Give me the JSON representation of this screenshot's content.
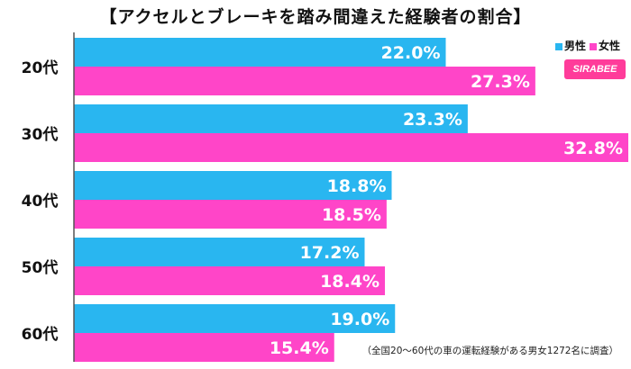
{
  "title": "【アクセルとブレーキを踏み間違えた経験者の割合】",
  "legend": {
    "male": "男性",
    "female": "女性"
  },
  "logo_text": "SIRABEE",
  "note": "（全国20〜60代の車の運転経験がある男女1272名に調査）",
  "colors": {
    "male": "#29b6f0",
    "female": "#ff45c8",
    "axis": "#555555"
  },
  "chart_data": {
    "type": "bar",
    "orientation": "horizontal",
    "categories": [
      "20代",
      "30代",
      "40代",
      "50代",
      "60代"
    ],
    "series": [
      {
        "name": "男性",
        "values": [
          22.0,
          23.3,
          18.8,
          17.2,
          19.0
        ]
      },
      {
        "name": "女性",
        "values": [
          27.3,
          32.8,
          18.5,
          18.4,
          15.4
        ]
      }
    ],
    "value_labels": {
      "男性": [
        "22.0%",
        "23.3%",
        "18.8%",
        "17.2%",
        "19.0%"
      ],
      "女性": [
        "27.3%",
        "32.8%",
        "18.5%",
        "18.4%",
        "15.4%"
      ]
    },
    "title": "【アクセルとブレーキを踏み間違えた経験者の割合】",
    "legend_position": "top-right",
    "xlim": [
      0,
      32.8
    ]
  }
}
